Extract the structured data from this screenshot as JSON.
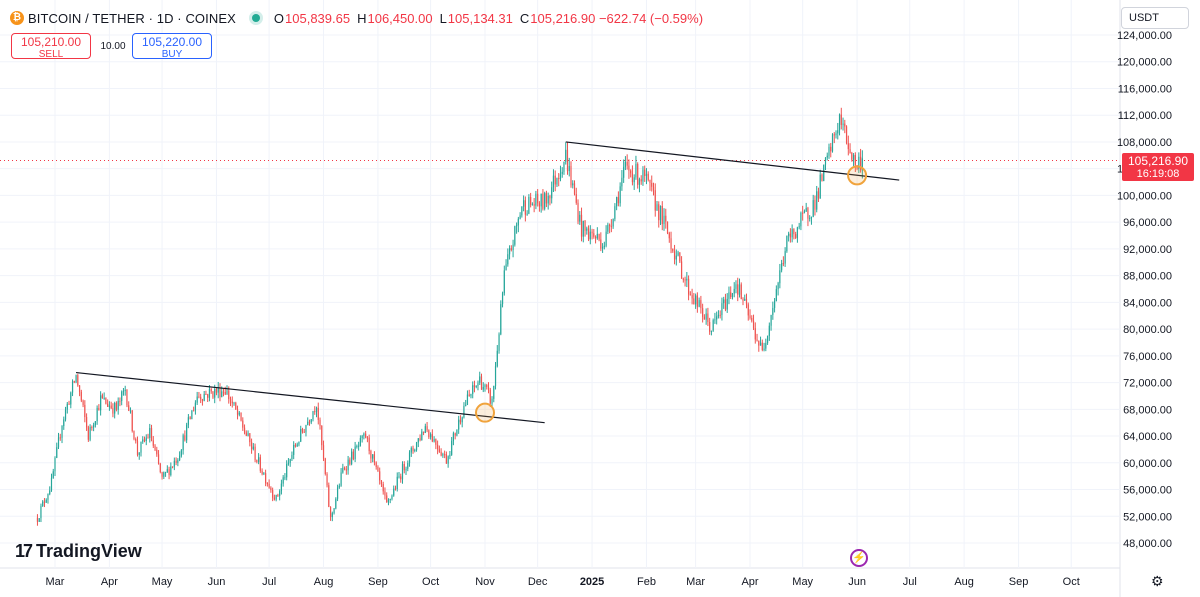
{
  "header": {
    "logo_text": "₿",
    "symbol": "BITCOIN / TETHER · 1D · COINEX",
    "ohlc": [
      {
        "label": "O",
        "value": "105,839.65"
      },
      {
        "label": "H",
        "value": "106,450.00"
      },
      {
        "label": "L",
        "value": "105,134.31"
      },
      {
        "label": "C",
        "value": "105,216.90 −622.74 (−0.59%)"
      }
    ]
  },
  "trade": {
    "sell_price": "105,210.00",
    "sell_label": "SELL",
    "spread": "10.00",
    "buy_price": "105,220.00",
    "buy_label": "BUY"
  },
  "currency": "USDT",
  "price_tag": {
    "price": "105,216.90",
    "countdown": "16:19:08"
  },
  "brand": {
    "mark": "17",
    "name": "TradingView"
  },
  "colors": {
    "up": "#26a69a",
    "down": "#ef5350",
    "last_price": "#f23645",
    "marker": "#f0a33c",
    "trendline": "#131722"
  },
  "icons": {
    "status": "live-dot-icon",
    "alert": "lightning-icon",
    "settings": "gear-icon"
  },
  "chart_data": {
    "type": "candlestick",
    "y_axis": {
      "ticks": [
        48000,
        52000,
        56000,
        60000,
        64000,
        68000,
        72000,
        76000,
        80000,
        84000,
        88000,
        92000,
        96000,
        100000,
        104000,
        108000,
        112000,
        116000,
        120000,
        124000
      ],
      "tick_labels": [
        "48,000.00",
        "52,000.00",
        "56,000.00",
        "60,000.00",
        "64,000.00",
        "68,000.00",
        "72,000.00",
        "76,000.00",
        "80,000.00",
        "84,000.00",
        "88,000.00",
        "92,000.00",
        "96,000.00",
        "100,000.00",
        "104,000.00",
        "108,000.00",
        "112,000.00",
        "116,000.00",
        "120,000.00",
        "124,000.00"
      ]
    },
    "x_axis": {
      "tick_labels": [
        "Mar",
        "Apr",
        "May",
        "Jun",
        "Jul",
        "Aug",
        "Sep",
        "Oct",
        "Nov",
        "Dec",
        "2025",
        "Feb",
        "Mar",
        "Apr",
        "May",
        "Jun",
        "Jul",
        "Aug",
        "Sep",
        "Oct"
      ],
      "tick_dates": [
        "2024-03-01",
        "2024-04-01",
        "2024-05-01",
        "2024-06-01",
        "2024-07-01",
        "2024-08-01",
        "2024-09-01",
        "2024-10-01",
        "2024-11-01",
        "2024-12-01",
        "2025-01-01",
        "2025-02-01",
        "2025-03-01",
        "2025-04-01",
        "2025-05-01",
        "2025-06-01",
        "2025-07-01",
        "2025-08-01",
        "2025-09-01",
        "2025-10-01"
      ],
      "bold_labels": [
        "2025"
      ]
    },
    "last_price": 105216.9,
    "series_closes": [
      {
        "date": "2024-02-20",
        "close": 51800
      },
      {
        "date": "2024-02-28",
        "close": 57000
      },
      {
        "date": "2024-03-05",
        "close": 66000
      },
      {
        "date": "2024-03-13",
        "close": 73000
      },
      {
        "date": "2024-03-20",
        "close": 64000
      },
      {
        "date": "2024-03-27",
        "close": 69500
      },
      {
        "date": "2024-04-05",
        "close": 68000
      },
      {
        "date": "2024-04-10",
        "close": 71000
      },
      {
        "date": "2024-04-17",
        "close": 61500
      },
      {
        "date": "2024-04-24",
        "close": 64500
      },
      {
        "date": "2024-05-01",
        "close": 57500
      },
      {
        "date": "2024-05-10",
        "close": 61000
      },
      {
        "date": "2024-05-21",
        "close": 70000
      },
      {
        "date": "2024-06-06",
        "close": 71000
      },
      {
        "date": "2024-06-15",
        "close": 66000
      },
      {
        "date": "2024-06-24",
        "close": 60500
      },
      {
        "date": "2024-07-05",
        "close": 54500
      },
      {
        "date": "2024-07-15",
        "close": 62000
      },
      {
        "date": "2024-07-28",
        "close": 69000
      },
      {
        "date": "2024-08-05",
        "close": 51500
      },
      {
        "date": "2024-08-12",
        "close": 59000
      },
      {
        "date": "2024-08-25",
        "close": 64000
      },
      {
        "date": "2024-09-06",
        "close": 53500
      },
      {
        "date": "2024-09-15",
        "close": 59000
      },
      {
        "date": "2024-09-28",
        "close": 65500
      },
      {
        "date": "2024-10-10",
        "close": 60500
      },
      {
        "date": "2024-10-20",
        "close": 68500
      },
      {
        "date": "2024-10-29",
        "close": 72500
      },
      {
        "date": "2024-11-05",
        "close": 69000
      },
      {
        "date": "2024-11-12",
        "close": 88000
      },
      {
        "date": "2024-11-22",
        "close": 98500
      },
      {
        "date": "2024-12-05",
        "close": 99000
      },
      {
        "date": "2024-12-17",
        "close": 106000
      },
      {
        "date": "2024-12-26",
        "close": 95000
      },
      {
        "date": "2025-01-08",
        "close": 93000
      },
      {
        "date": "2025-01-20",
        "close": 104000
      },
      {
        "date": "2025-01-31",
        "close": 102500
      },
      {
        "date": "2025-02-10",
        "close": 96500
      },
      {
        "date": "2025-02-25",
        "close": 86000
      },
      {
        "date": "2025-03-10",
        "close": 80000
      },
      {
        "date": "2025-03-24",
        "close": 87000
      },
      {
        "date": "2025-04-08",
        "close": 76500
      },
      {
        "date": "2025-04-22",
        "close": 93000
      },
      {
        "date": "2025-05-08",
        "close": 99000
      },
      {
        "date": "2025-05-22",
        "close": 111500
      },
      {
        "date": "2025-05-31",
        "close": 104500
      },
      {
        "date": "2025-06-04",
        "close": 105216.9
      }
    ],
    "trendlines": [
      {
        "start": {
          "date": "2024-03-13",
          "price": 73500
        },
        "end": {
          "date": "2024-12-05",
          "price": 66000
        }
      },
      {
        "start": {
          "date": "2024-12-17",
          "price": 108000
        },
        "end": {
          "date": "2025-06-25",
          "price": 102300
        }
      }
    ],
    "markers": [
      {
        "date": "2024-11-01",
        "price": 67500
      },
      {
        "date": "2025-06-01",
        "price": 103000
      }
    ],
    "grid": true
  }
}
